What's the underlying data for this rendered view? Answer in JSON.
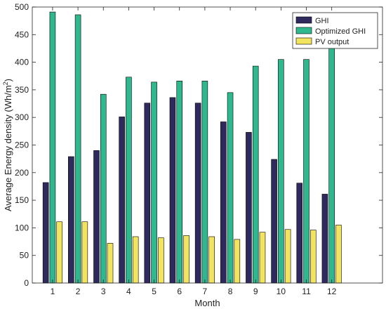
{
  "chart_data": {
    "type": "bar",
    "title": "",
    "xlabel": "Month",
    "ylabel": "Average Energy density (Wh/m",
    "ylabel_sup": "2",
    "ylabel_tail": ")",
    "categories": [
      "1",
      "2",
      "3",
      "4",
      "5",
      "6",
      "7",
      "8",
      "9",
      "10",
      "11",
      "12"
    ],
    "series": [
      {
        "name": "GHI",
        "color": "#2e2a5e",
        "values": [
          182,
          229,
          240,
          301,
          326,
          336,
          326,
          292,
          273,
          224,
          181,
          161
        ]
      },
      {
        "name": "Optimized GHI",
        "color": "#2fb88e",
        "values": [
          491,
          486,
          342,
          373,
          364,
          366,
          366,
          345,
          393,
          405,
          405,
          437
        ]
      },
      {
        "name": "PV output",
        "color": "#f2e45e",
        "values": [
          111,
          111,
          72,
          84,
          82,
          86,
          84,
          79,
          92,
          97,
          96,
          105
        ]
      }
    ],
    "ylim": [
      0,
      500
    ],
    "yticks": [
      0,
      50,
      100,
      150,
      200,
      250,
      300,
      350,
      400,
      450,
      500
    ],
    "xlim": [
      0.2,
      14
    ],
    "legend_position": "top-right",
    "grid": false
  }
}
